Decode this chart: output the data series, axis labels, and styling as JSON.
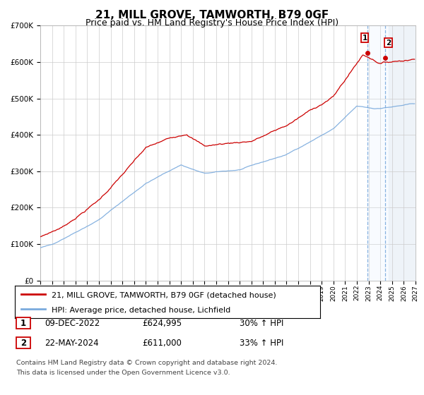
{
  "title": "21, MILL GROVE, TAMWORTH, B79 0GF",
  "subtitle": "Price paid vs. HM Land Registry's House Price Index (HPI)",
  "legend_line1": "21, MILL GROVE, TAMWORTH, B79 0GF (detached house)",
  "legend_line2": "HPI: Average price, detached house, Lichfield",
  "sale1_label": "1",
  "sale1_date": "09-DEC-2022",
  "sale1_price": "£624,995",
  "sale1_hpi": "30% ↑ HPI",
  "sale2_label": "2",
  "sale2_date": "22-MAY-2024",
  "sale2_price": "£611,000",
  "sale2_hpi": "33% ↑ HPI",
  "footnote1": "Contains HM Land Registry data © Crown copyright and database right 2024.",
  "footnote2": "This data is licensed under the Open Government Licence v3.0.",
  "hpi_color": "#7aaadd",
  "price_color": "#cc0000",
  "marker_color": "#cc0000",
  "highlight_color": "#ddeeff",
  "hatch_color": "#aabbcc",
  "sale1_year": 2022.92,
  "sale2_year": 2024.38,
  "sale1_value": 624995,
  "sale2_value": 611000,
  "ylim_max": 700000,
  "ylim_min": 0,
  "xlim_min": 1995,
  "xlim_max": 2027,
  "background_color": "#ffffff",
  "grid_color": "#cccccc",
  "title_fontsize": 11,
  "subtitle_fontsize": 9
}
